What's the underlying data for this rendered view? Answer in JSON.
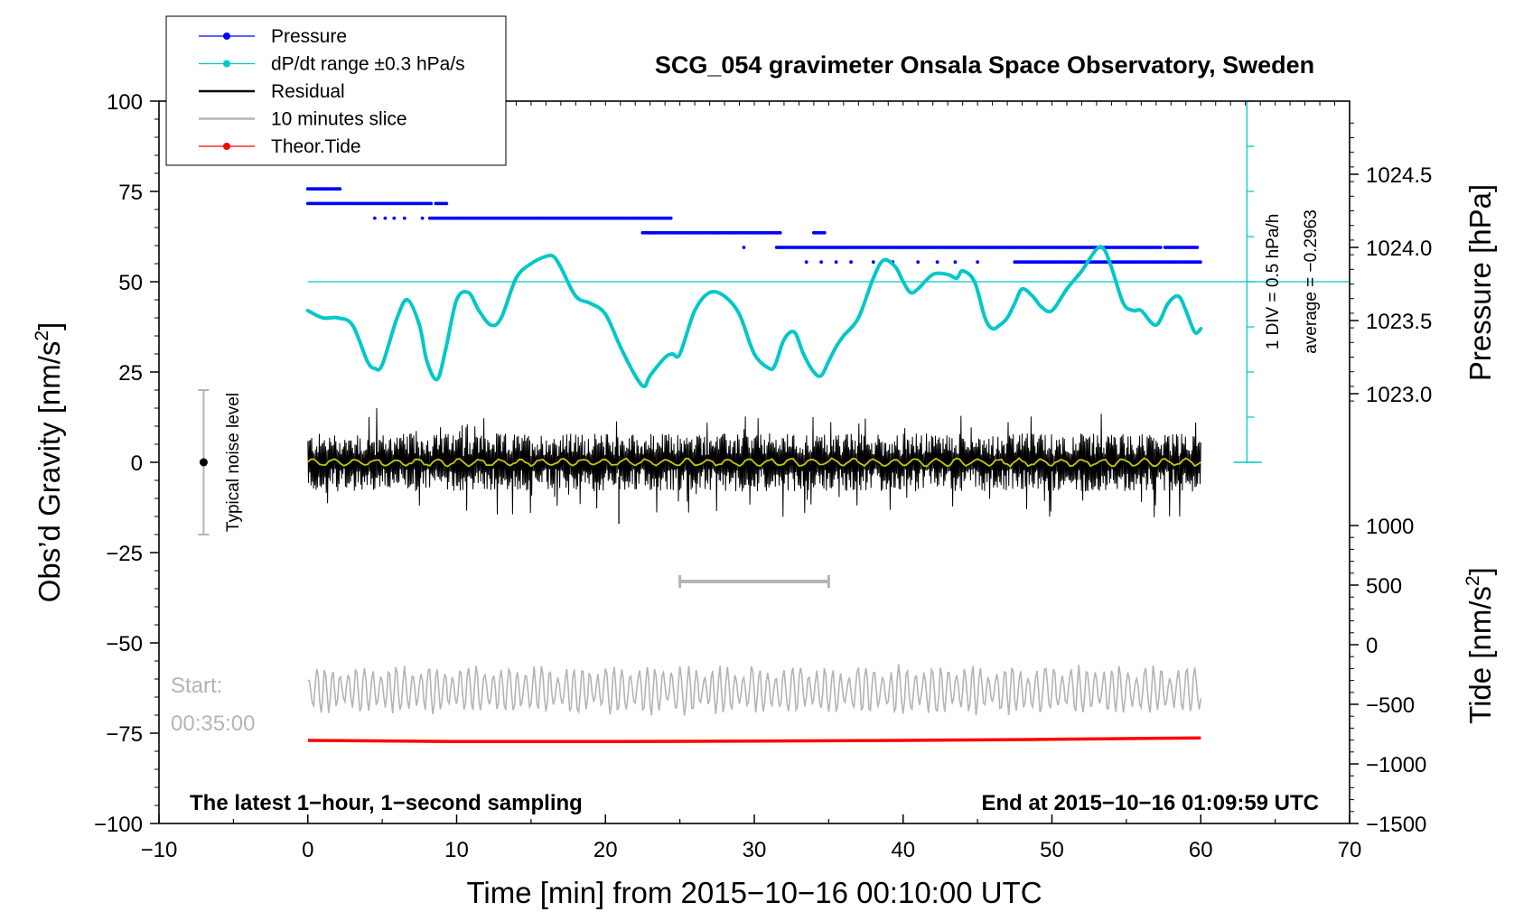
{
  "chart_data": {
    "type": "line",
    "title": "SCG_054 gravimeter Onsala Space Observatory, Sweden",
    "xlabel": "Time [min] from 2015−10−16 00:10:00 UTC",
    "ylabel_left": "Obs’d Gravity [nm/s",
    "ylabel_left_sup": "2",
    "ylabel_left_end": "]",
    "ylabel_right_top": "Pressure [hPa]",
    "ylabel_right_bottom": "Tide [nm/s",
    "ylabel_right_bottom_sup": "2",
    "ylabel_right_bottom_end": "]",
    "xlim": [
      -10,
      70
    ],
    "ylim": [
      -100,
      100
    ],
    "x_ticks": [
      -10,
      0,
      10,
      20,
      30,
      40,
      50,
      60,
      70
    ],
    "x_tick_labels": [
      "−10",
      "0",
      "10",
      "20",
      "30",
      "40",
      "50",
      "60",
      "70"
    ],
    "y_ticks": [
      100,
      75,
      50,
      25,
      0,
      -25,
      -50,
      -75,
      -100
    ],
    "y_tick_labels": [
      "100",
      "75",
      "50",
      "25",
      "0",
      "−25",
      "−50",
      "−75",
      "−100"
    ],
    "pressure_ticks": [
      1024.5,
      1024.0,
      1023.5,
      1023.0
    ],
    "pressure_tick_labels": [
      "1024.5",
      "1024.0",
      "1023.5",
      "1023.0"
    ],
    "tide_ticks": [
      1000,
      500,
      0,
      -500,
      -1000,
      -1500
    ],
    "tide_tick_labels": [
      "1000",
      "500",
      "0",
      "−500",
      "−1000",
      "−1500"
    ],
    "legend": [
      {
        "label": "Pressure",
        "color": "#0000ff",
        "marker": true
      },
      {
        "label": "dP/dt range ±0.3 hPa/s",
        "color": "#00c8c8",
        "marker": true
      },
      {
        "label": "Residual",
        "color": "#000000",
        "marker": false
      },
      {
        "label": "10 minutes slice",
        "color": "#b4b4b4",
        "marker": false
      },
      {
        "label": "Theor.Tide",
        "color": "#ff0000",
        "marker": true
      }
    ],
    "pressure_levels_hpa": [
      {
        "value": 1024.4,
        "segments": [
          [
            0.0,
            2.2
          ]
        ]
      },
      {
        "value": 1024.3,
        "segments": [
          [
            0.0,
            8.4
          ],
          [
            8.6,
            9.4
          ]
        ]
      },
      {
        "value": 1024.2,
        "segments": [
          [
            8.2,
            24.5
          ]
        ]
      },
      {
        "value": 1024.1,
        "segments": [
          [
            22.5,
            31.8
          ],
          [
            34.0,
            34.8
          ]
        ]
      },
      {
        "value": 1024.0,
        "segments": [
          [
            31.5,
            57.3
          ],
          [
            57.6,
            59.8
          ]
        ]
      },
      {
        "value": 1023.9,
        "segments": [
          [
            47.5,
            60.0
          ]
        ]
      }
    ],
    "dpdt": {
      "reference_level": 50,
      "scale_label": "1 DIV = 0.5 hPa/h",
      "average_label": "average = −0.2963",
      "x": [
        0,
        1,
        2,
        3,
        4,
        4.5,
        5,
        6,
        6.7,
        7.5,
        8,
        8.7,
        9.3,
        10,
        10.8,
        11.5,
        12.3,
        13,
        14,
        15,
        16,
        16.5,
        17,
        18,
        19,
        20,
        21,
        22,
        22.6,
        23,
        24,
        24.5,
        25,
        26,
        27,
        28,
        29,
        30,
        31,
        31.4,
        32,
        32.7,
        33.3,
        34,
        34.5,
        35,
        35.5,
        36,
        37,
        38,
        38.7,
        39.5,
        40,
        40.5,
        41,
        42,
        43,
        43.6,
        44,
        44.8,
        45.5,
        46,
        46.5,
        47,
        47.5,
        48,
        48.7,
        49.3,
        50,
        51,
        52,
        53,
        53.5,
        54,
        54.8,
        55.5,
        56,
        57,
        57.8,
        58.5,
        59,
        59.6,
        60
      ],
      "y": [
        42,
        40,
        40,
        38,
        28,
        26,
        27,
        40,
        45,
        38,
        28,
        23,
        32,
        45,
        47,
        42,
        38,
        40,
        51,
        55,
        57,
        57,
        54,
        46,
        44,
        41,
        32,
        24,
        21,
        24,
        29,
        30,
        30,
        42,
        47,
        46,
        41,
        30,
        26,
        27,
        34,
        36,
        30,
        25,
        24,
        28,
        32,
        35,
        40,
        51,
        56,
        54,
        50,
        47,
        48,
        52,
        52,
        51,
        53,
        50,
        40,
        37,
        38,
        40,
        44,
        48,
        46,
        43,
        42,
        48,
        53,
        59,
        59,
        54,
        44,
        42,
        42,
        38,
        44,
        46,
        42,
        36,
        37
      ]
    },
    "residual": {
      "x_range": [
        0,
        60
      ],
      "sampling": "1 s",
      "typical_amplitude": 7,
      "min": -17,
      "max": 15,
      "baseline": 0
    },
    "slice": {
      "offset": -63,
      "x_range": [
        0,
        60
      ],
      "bar_x_range": [
        25,
        35
      ],
      "bar_y": -33,
      "typical_amplitude": 5
    },
    "theoretical_tide": {
      "x": [
        0,
        10,
        20,
        30,
        40,
        50,
        60
      ],
      "y": [
        -77,
        -77.3,
        -77.3,
        -77.2,
        -77.0,
        -76.7,
        -76.3
      ]
    },
    "noise_indicator": {
      "x": -7,
      "y_center": 0,
      "y_range": [
        -20,
        20
      ],
      "label": "Typical noise level"
    },
    "annotations": {
      "start_label": "Start:",
      "start_time": "00:35:00",
      "footer_left": "The latest 1−hour, 1−second sampling",
      "footer_right": "End at 2015−10−16 01:09:59 UTC"
    },
    "colors": {
      "pressure": "#0000ff",
      "dpdt": "#00c8c8",
      "residual": "#000000",
      "smoothed": "#c8c800",
      "slice": "#b4b4b4",
      "tide": "#ff0000"
    }
  }
}
